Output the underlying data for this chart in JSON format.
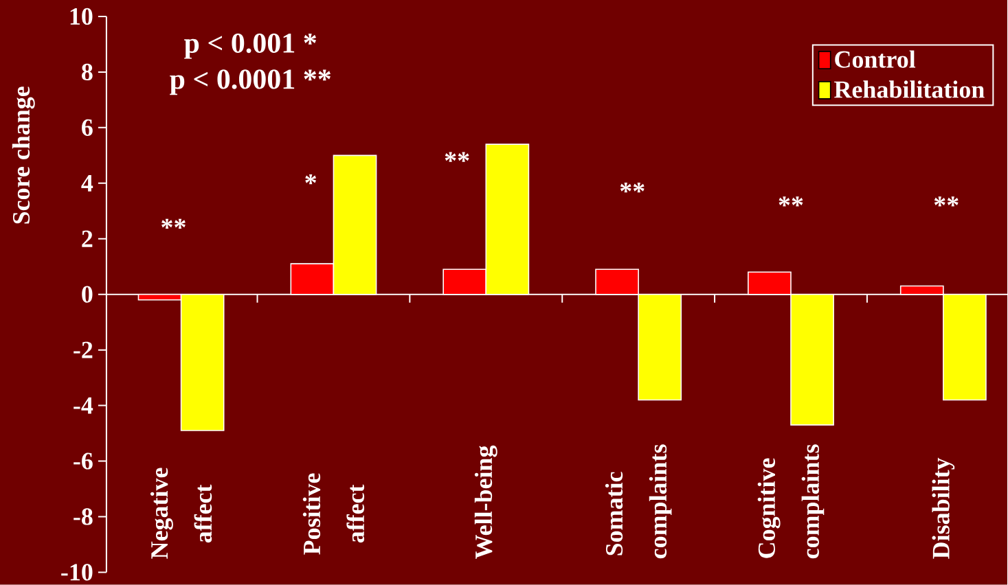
{
  "chart_data": {
    "type": "bar",
    "ylabel": "Score change",
    "categories": [
      "Negative affect",
      "Positive affect",
      "Well-being",
      "Somatic complaints",
      "Cognitive complaints",
      "Disability"
    ],
    "series": [
      {
        "name": "Control",
        "color": "#ff0000",
        "values": [
          -0.2,
          1.1,
          0.9,
          0.9,
          0.8,
          0.3
        ]
      },
      {
        "name": "Rehabilitation",
        "color": "#ffff00",
        "values": [
          -4.9,
          5.0,
          5.4,
          -3.8,
          -4.7,
          -3.8
        ]
      }
    ],
    "ylim": [
      -10,
      10
    ],
    "yticks": [
      -10,
      -8,
      -6,
      -4,
      -2,
      0,
      2,
      4,
      6,
      8,
      10
    ],
    "legend": "top right",
    "annotations": [
      "p < 0.001 *",
      "p < 0.0001 **",
      "**",
      "*",
      "**",
      "**",
      "**",
      "**"
    ]
  }
}
